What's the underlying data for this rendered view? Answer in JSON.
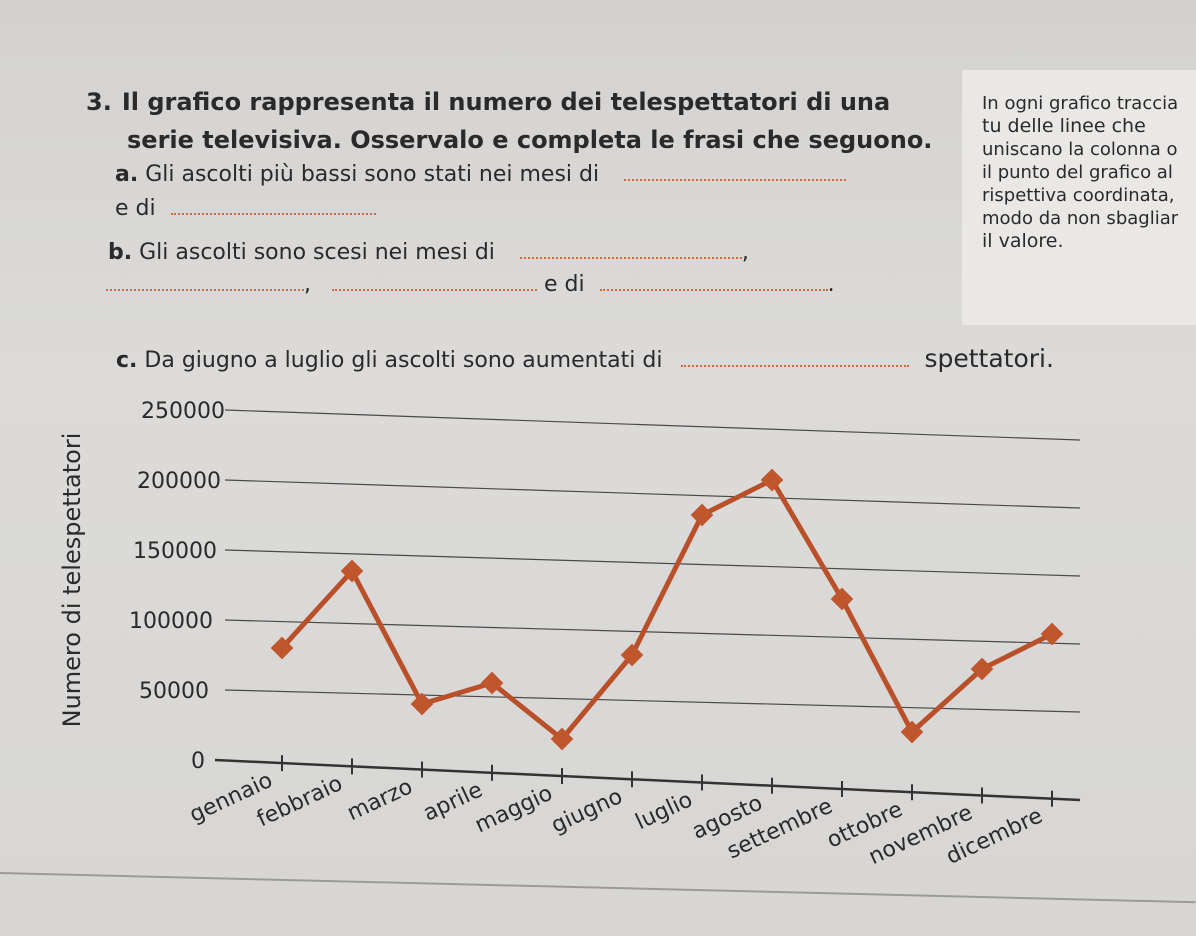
{
  "exercise": {
    "number": "3.",
    "title_line1": "Il grafico rappresenta il numero dei telespettatori di una",
    "title_line2": "serie televisiva. Osservalo e completa le frasi che seguono.",
    "a_label": "a.",
    "a_text": "Gli ascolti più bassi sono stati nei mesi di",
    "a_text2": "e di",
    "b_label": "b.",
    "b_text": "Gli ascolti sono scesi nei mesi di",
    "comma": ",",
    "b_and": "e di",
    "period": ".",
    "c_label": "c.",
    "c_text": "Da giugno a luglio gli ascolti sono aumentati di",
    "c_end": "spettatori."
  },
  "sidebar": {
    "lines": [
      "In ogni grafico traccia",
      "tu delle linee che",
      "uniscano la colonna o",
      "il punto del grafico al",
      "rispettiva coordinata,",
      "modo da non sbagliar",
      "il valore."
    ]
  },
  "colors": {
    "line": "#b9502a",
    "marker": "#c0562b",
    "blank": "#d06a3a",
    "grid": "#4a4a4a"
  },
  "chart_data": {
    "type": "line",
    "ylabel": "Numero di telespettatori",
    "ylim": [
      0,
      250000
    ],
    "y_ticks": [
      "0",
      "50000",
      "100000",
      "150000",
      "200000",
      "250000"
    ],
    "categories": [
      "gennaio",
      "febbraio",
      "marzo",
      "aprile",
      "maggio",
      "giugno",
      "luglio",
      "agosto",
      "settembre",
      "ottobre",
      "novembre",
      "dicembre"
    ],
    "values": [
      80000,
      135000,
      40000,
      55000,
      15000,
      75000,
      175000,
      200000,
      115000,
      20000,
      65000,
      90000
    ],
    "grid": true
  }
}
